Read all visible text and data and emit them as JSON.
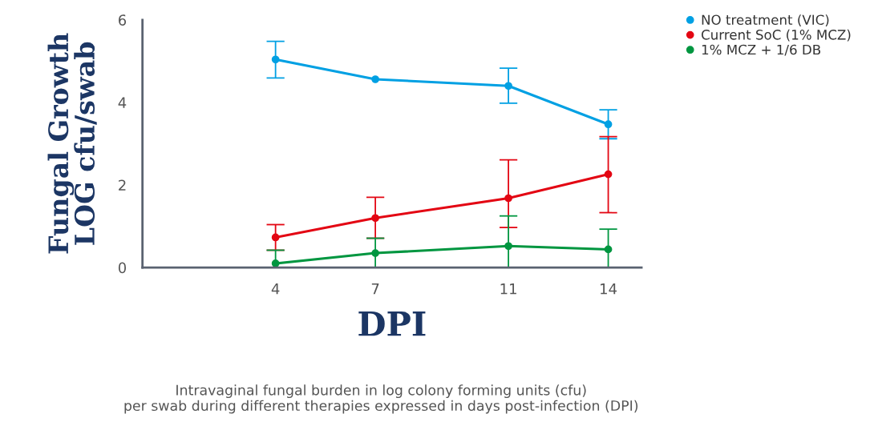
{
  "chart_data": {
    "type": "line",
    "xlabel": "DPI",
    "ylabel": "Fungal Growth\nLOG cfu/swab",
    "x": [
      4,
      7,
      11,
      14
    ],
    "xlim": [
      0,
      15
    ],
    "xticks": [
      4,
      7,
      11,
      14
    ],
    "ylim": [
      0,
      6
    ],
    "yticks": [
      0,
      2,
      4,
      6
    ],
    "series": [
      {
        "name": "NO treatment (VIC)",
        "color": "#00a0e3",
        "values": [
          5.04,
          4.56,
          4.4,
          3.47
        ],
        "errors": [
          [
            4.59,
            5.48
          ],
          null,
          [
            3.98,
            4.83
          ],
          [
            3.12,
            3.82
          ]
        ]
      },
      {
        "name": "Current SoC (1% MCZ)",
        "color": "#e30613",
        "values": [
          0.73,
          1.2,
          1.68,
          2.26
        ],
        "errors": [
          [
            0.42,
            1.04
          ],
          [
            0.71,
            1.7
          ],
          [
            0.97,
            2.61
          ],
          [
            1.33,
            3.17
          ]
        ]
      },
      {
        "name": "1% MCZ + 1/6 DB",
        "color": "#009640",
        "values": [
          0.1,
          0.35,
          0.52,
          0.44
        ],
        "errors": [
          [
            0,
            0.42
          ],
          [
            0,
            0.71
          ],
          [
            0,
            1.25
          ],
          [
            0,
            0.93
          ]
        ]
      }
    ],
    "marker": "circle",
    "line_style": "solid",
    "grid": false,
    "legend": "top right",
    "annotations": [
      "Intravaginal fungal burden in log colony forming units (cfu)\nper swab during different therapies expressed in days post-infection (DPI)"
    ]
  }
}
